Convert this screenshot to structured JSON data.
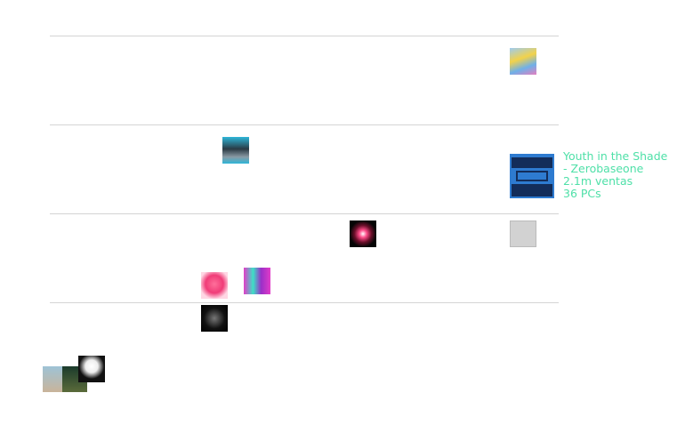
{
  "tooltip": {
    "title": "Youth in the Shade - Zerobaseone",
    "sales": "2.1m ventas",
    "pcs": "36 PCs"
  }
}
